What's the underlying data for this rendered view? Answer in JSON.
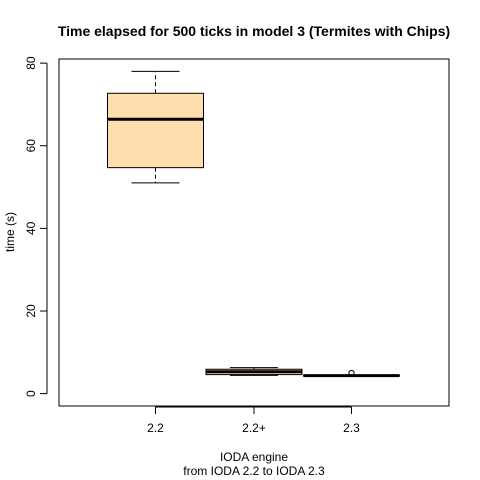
{
  "chart_data": {
    "type": "boxplot",
    "title": "Time elapsed for 500 ticks in model 3 (Termites with Chips)",
    "xlabel": "IODA engine",
    "xlabel_sub": "from IODA 2.2 to IODA 2.3",
    "ylabel": "time (s)",
    "ylim": [
      -3,
      81
    ],
    "yticks": [
      0,
      20,
      40,
      60,
      80
    ],
    "categories": [
      "2.2",
      "2.2+",
      "2.3"
    ],
    "boxes": [
      {
        "category": "2.2",
        "whisker_low": 51,
        "q1": 54.7,
        "median": 66.4,
        "q3": 72.7,
        "whisker_high": 78,
        "outliers": []
      },
      {
        "category": "2.2+",
        "whisker_low": 4.4,
        "q1": 4.6,
        "median": 5.3,
        "q3": 5.9,
        "whisker_high": 6.3,
        "outliers": []
      },
      {
        "category": "2.3",
        "whisker_low": 4.3,
        "q1": 4.3,
        "median": 4.35,
        "q3": 4.4,
        "whisker_high": 4.4,
        "outliers": [
          5.0
        ]
      }
    ],
    "box_fill": "#ffdead",
    "grid": false,
    "legend": "none"
  }
}
